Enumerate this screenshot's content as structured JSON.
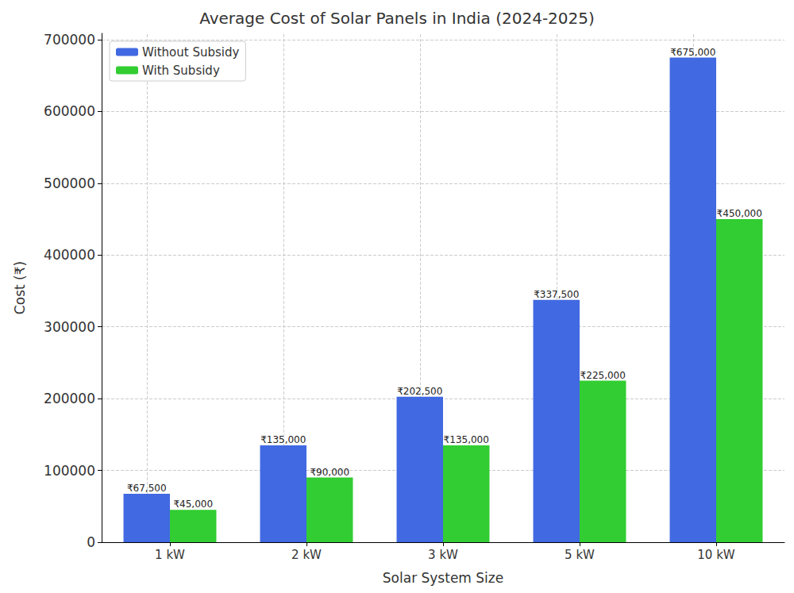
{
  "chart_data": {
    "type": "bar",
    "title": "Average Cost of Solar Panels in India (2024-2025)",
    "x_label": "Solar System Size",
    "y_label": "Cost (₹)",
    "categories": [
      "1 kW",
      "2 kW",
      "3 kW",
      "5 kW",
      "10 kW"
    ],
    "series": [
      {
        "name": "Without Subsidy",
        "color": "#4169e1",
        "values": [
          67500,
          135000,
          202500,
          337500,
          675000
        ],
        "value_labels": [
          "₹67,500",
          "₹135,000",
          "₹202,500",
          "₹337,500",
          "₹675,000"
        ]
      },
      {
        "name": "With Subsidy",
        "color": "#32cd32",
        "values": [
          45000,
          90000,
          135000,
          225000,
          450000
        ],
        "value_labels": [
          "₹45,000",
          "₹90,000",
          "₹135,000",
          "₹225,000",
          "₹450,000"
        ]
      }
    ],
    "ylim": [
      0,
      708750
    ],
    "yticks": [
      0,
      100000,
      200000,
      300000,
      400000,
      500000,
      600000,
      700000
    ],
    "grid": true,
    "legend": "upper left",
    "data_labels": true
  }
}
